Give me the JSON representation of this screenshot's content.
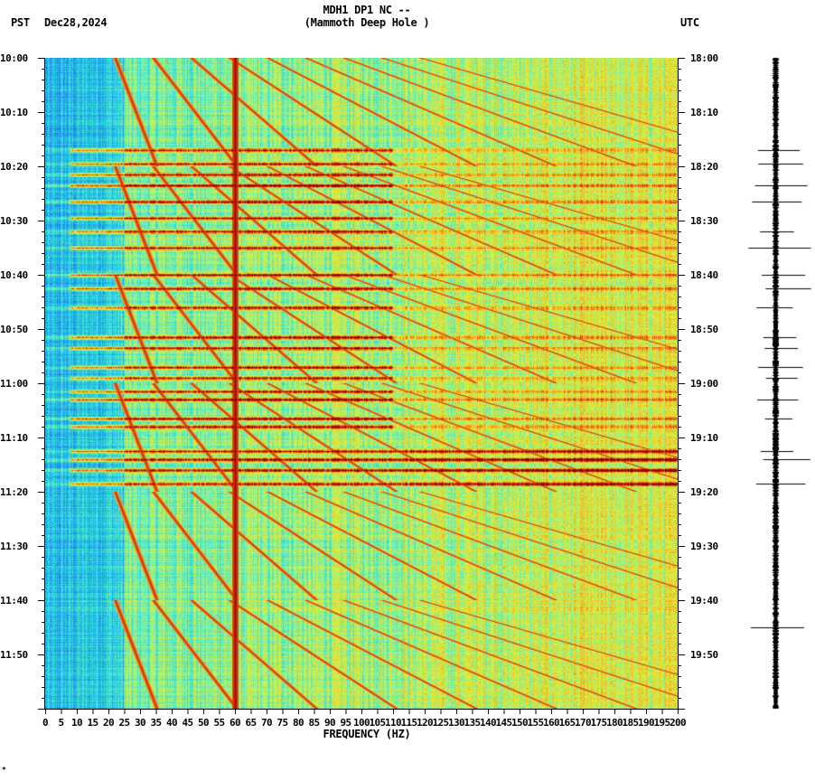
{
  "header": {
    "title_line1": "MDH1 DP1 NC --",
    "title_line2": "(Mammoth Deep Hole )",
    "left_timezone": "PST",
    "date": "Dec28,2024",
    "right_timezone": "UTC"
  },
  "footer": {
    "corner_mark": "*"
  },
  "chart_data": {
    "type": "heatmap",
    "title": "MDH1 DP1 NC -- (Mammoth Deep Hole )",
    "xlabel": "FREQUENCY (HZ)",
    "ylabel_left": "PST",
    "ylabel_right": "UTC",
    "date": "Dec28,2024",
    "xlim": [
      0,
      200
    ],
    "x_tick_step": 5,
    "x_ticks": [
      "0",
      "5",
      "10",
      "15",
      "20",
      "25",
      "30",
      "35",
      "40",
      "45",
      "50",
      "55",
      "60",
      "65",
      "70",
      "75",
      "80",
      "85",
      "90",
      "95",
      "100",
      "105",
      "110",
      "115",
      "120",
      "125",
      "130",
      "135",
      "140",
      "145",
      "150",
      "155",
      "160",
      "165",
      "170",
      "175",
      "180",
      "185",
      "190",
      "195",
      "200"
    ],
    "y_ticks_left": [
      "10:00",
      "10:10",
      "10:20",
      "10:30",
      "10:40",
      "10:50",
      "11:00",
      "11:10",
      "11:20",
      "11:30",
      "11:40",
      "11:50"
    ],
    "y_ticks_right": [
      "18:00",
      "18:10",
      "18:20",
      "18:30",
      "18:40",
      "18:50",
      "19:00",
      "19:10",
      "19:20",
      "19:30",
      "19:40",
      "19:50"
    ],
    "time_range_minutes": 120,
    "colormap": [
      "#1a5bd8",
      "#2a9be8",
      "#22d8e8",
      "#7ef0a0",
      "#e8f030",
      "#f0a020",
      "#d83a10",
      "#8a0000"
    ],
    "features": {
      "constant_line_hz": 60,
      "strong_horizontal_bands_minutes": [
        17,
        19.5,
        21.5,
        23.5,
        26.5,
        29.5,
        32,
        35,
        40,
        42.5,
        46,
        51.5,
        53.5,
        57,
        59,
        61.5,
        63,
        66.5,
        68,
        72.5,
        74,
        76,
        78.5
      ],
      "low_freq_blue_region_hz": [
        0,
        25
      ],
      "gliding_harmonics": "curved upward-sweeping tremor/drilling harmonics throughout"
    },
    "grid": false,
    "legend": null
  },
  "seismogram": {
    "position": "right",
    "spike_minutes": [
      17,
      19.5,
      23.5,
      26.5,
      32,
      35,
      40,
      42.5,
      46,
      51.5,
      53.5,
      57,
      59,
      63,
      66.5,
      72.5,
      74,
      78.5,
      105
    ]
  }
}
